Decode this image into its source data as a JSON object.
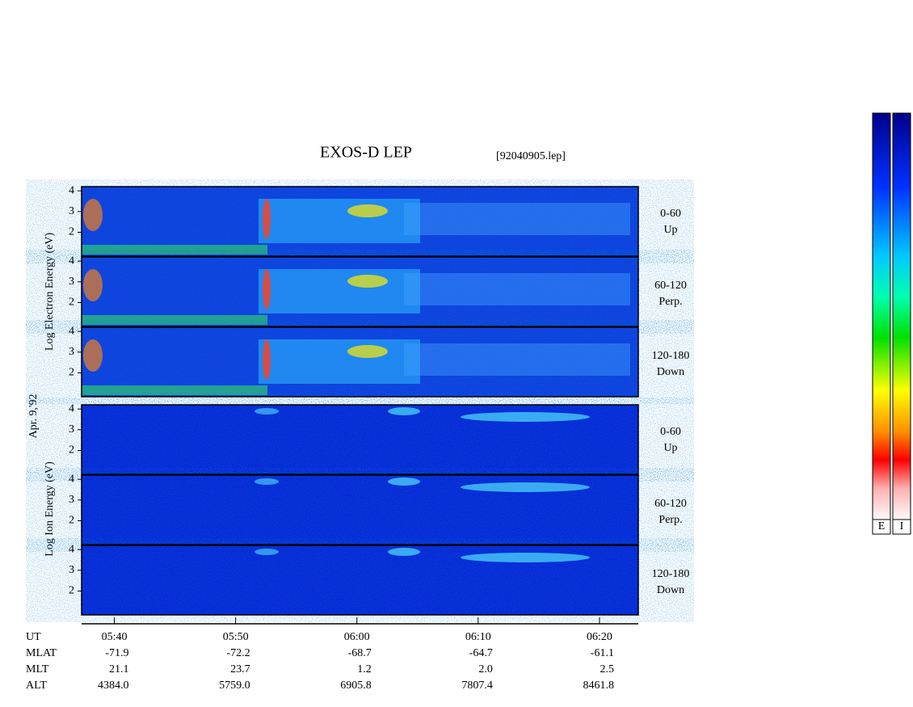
{
  "title": "EXOS-D LEP",
  "file": "[92040905.lep]",
  "date": "Apr. 9,'92",
  "electron_axis_label": "Log   Electron   Energy (eV)",
  "ion_axis_label": "Log   Ion   Energy (eV)",
  "ylim": [
    0.85,
    4.2
  ],
  "yticks": [
    2,
    3,
    4
  ],
  "xlim": [
    337.3,
    383.2
  ],
  "xticks": [
    {
      "value": 340,
      "label": "05:40"
    },
    {
      "value": 350,
      "label": "05:50"
    },
    {
      "value": 360,
      "label": "06:00"
    },
    {
      "value": 370,
      "label": "06:10"
    },
    {
      "value": 380,
      "label": "06:20"
    }
  ],
  "panels": [
    {
      "species": "electron",
      "range": "0-60",
      "direction": "Up"
    },
    {
      "species": "electron",
      "range": "60-120",
      "direction": "Perp."
    },
    {
      "species": "electron",
      "range": "120-180",
      "direction": "Down"
    },
    {
      "species": "ion",
      "range": "0-60",
      "direction": "Up"
    },
    {
      "species": "ion",
      "range": "60-120",
      "direction": "Perp."
    },
    {
      "species": "ion",
      "range": "120-180",
      "direction": "Down"
    }
  ],
  "table": [
    {
      "label": "UT",
      "values": []
    },
    {
      "label": "MLAT",
      "values": [
        "-71.9",
        "-72.2",
        "-68.7",
        "-64.7",
        "-61.1"
      ]
    },
    {
      "label": "MLT",
      "values": [
        "21.1",
        "23.7",
        "1.2",
        "2.0",
        "2.5"
      ]
    },
    {
      "label": "ALT",
      "values": [
        "4384.0",
        "5759.0",
        "6905.8",
        "7807.4",
        "8461.8"
      ]
    }
  ],
  "colorbar_labels": [
    "E",
    "I"
  ]
}
